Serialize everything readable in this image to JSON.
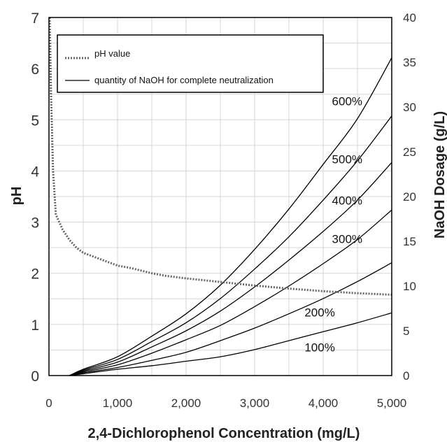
{
  "chart_data": {
    "type": "line",
    "xlabel": "2,4-Dichlorophenol Concentration (mg/L)",
    "ylabel": "pH",
    "y2label": "NaOH Dosage (g/L)",
    "xlim": [
      0,
      5000
    ],
    "ylim": [
      0,
      7
    ],
    "y2lim": [
      0,
      40
    ],
    "x_ticks": [
      0,
      1000,
      2000,
      3000,
      4000,
      5000
    ],
    "x_tick_labels": [
      "0",
      "1,000",
      "2,000",
      "3,000",
      "4,000",
      "5,000"
    ],
    "y_ticks": [
      0,
      1,
      2,
      3,
      4,
      5,
      6,
      7
    ],
    "y_tick_labels": [
      "0",
      "1",
      "2",
      "3",
      "4",
      "5",
      "6",
      "7"
    ],
    "y2_ticks": [
      0,
      5,
      10,
      15,
      20,
      25,
      30,
      35,
      40
    ],
    "y2_tick_labels": [
      "0",
      "5",
      "10",
      "15",
      "20",
      "25",
      "30",
      "35",
      "40"
    ],
    "grid": true,
    "legend": {
      "placement": "top-left",
      "entries": [
        {
          "label": "pH value",
          "style": "dotted"
        },
        {
          "label": "quantity of NaOH for complete neutralization",
          "style": "solid"
        }
      ]
    },
    "colors": {
      "ph_line": "#666666",
      "naoh_line": "#000000",
      "grid": "#d6d6d6"
    },
    "ph_series": {
      "name": "pH value",
      "axis": "left",
      "x": [
        10,
        30,
        60,
        100,
        150,
        200,
        300,
        400,
        500,
        700,
        800,
        1000,
        1200,
        1500,
        1700,
        2000,
        2500,
        3000,
        3500,
        4000,
        4500,
        5000
      ],
      "y": [
        7.0,
        5.5,
        4.0,
        3.15,
        3.0,
        2.85,
        2.65,
        2.5,
        2.4,
        2.3,
        2.25,
        2.15,
        2.1,
        2.0,
        1.95,
        1.9,
        1.83,
        1.76,
        1.7,
        1.65,
        1.61,
        1.58
      ]
    },
    "naoh_series": [
      {
        "label": "100%",
        "axis": "right",
        "x": [
          300,
          500,
          1000,
          1500,
          2000,
          2500,
          3000,
          3500,
          4000,
          4500,
          5000
        ],
        "y": [
          0,
          0.2,
          0.7,
          1.1,
          1.6,
          2.1,
          2.9,
          3.9,
          4.9,
          5.9,
          7.0
        ]
      },
      {
        "label": "200%",
        "axis": "right",
        "x": [
          300,
          500,
          1000,
          1500,
          2000,
          2500,
          3000,
          3500,
          4000,
          4500,
          5000
        ],
        "y": [
          0,
          0.3,
          0.9,
          1.7,
          2.6,
          3.9,
          5.3,
          6.9,
          8.6,
          10.5,
          12.6
        ]
      },
      {
        "label": "300%",
        "axis": "right",
        "x": [
          300,
          500,
          1000,
          1500,
          2000,
          2500,
          3000,
          3500,
          4000,
          4500,
          5000
        ],
        "y": [
          0,
          0.4,
          1.2,
          2.5,
          4.0,
          5.6,
          7.7,
          10.0,
          12.5,
          15.2,
          18.5
        ]
      },
      {
        "label": "400%",
        "axis": "right",
        "x": [
          300,
          500,
          1000,
          1500,
          2000,
          2500,
          3000,
          3500,
          4000,
          4500,
          5000
        ],
        "y": [
          0,
          0.5,
          1.5,
          3.2,
          5.0,
          7.2,
          9.9,
          12.9,
          16.1,
          19.6,
          23.8
        ]
      },
      {
        "label": "500%",
        "axis": "right",
        "x": [
          300,
          500,
          1000,
          1500,
          2000,
          2500,
          3000,
          3500,
          4000,
          4500,
          5000
        ],
        "y": [
          0,
          0.6,
          1.8,
          3.8,
          5.9,
          8.6,
          11.9,
          15.5,
          19.6,
          24.0,
          29.0
        ]
      },
      {
        "label": "600%",
        "axis": "right",
        "x": [
          300,
          500,
          1000,
          1500,
          2000,
          2500,
          3000,
          3500,
          4000,
          4500,
          5000
        ],
        "y": [
          0,
          0.7,
          2.1,
          4.4,
          6.9,
          10.1,
          14.1,
          18.6,
          23.6,
          28.7,
          35.5
        ]
      }
    ]
  }
}
